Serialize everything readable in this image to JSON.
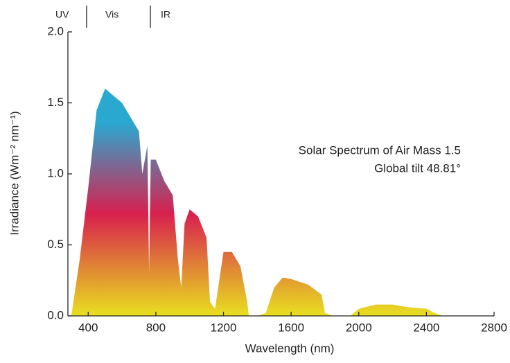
{
  "chart_data": {
    "type": "area",
    "annotations": [
      "UV",
      "Vis",
      "IR",
      "Solar Spectrum of Air Mass 1.5",
      "Global tilt  48.81°"
    ],
    "x_label": "Wavelength (nm)",
    "y_label": "Irradiance (Wm⁻² nm⁻¹)",
    "x": [
      300,
      350,
      400,
      450,
      500,
      550,
      600,
      650,
      700,
      720,
      750,
      760,
      770,
      800,
      850,
      900,
      930,
      950,
      970,
      1000,
      1050,
      1100,
      1120,
      1150,
      1200,
      1250,
      1300,
      1340,
      1350,
      1400,
      1450,
      1500,
      1550,
      1600,
      1700,
      1780,
      1800,
      1850,
      1950,
      2000,
      2100,
      2200,
      2300,
      2400,
      2450,
      2500
    ],
    "values": [
      0,
      0.4,
      0.9,
      1.45,
      1.6,
      1.55,
      1.5,
      1.4,
      1.3,
      1.0,
      1.2,
      0.3,
      1.1,
      1.1,
      0.95,
      0.85,
      0.4,
      0.2,
      0.65,
      0.75,
      0.7,
      0.55,
      0.1,
      0.05,
      0.45,
      0.45,
      0.35,
      0.1,
      0,
      0,
      0.02,
      0.2,
      0.27,
      0.26,
      0.22,
      0.15,
      0.02,
      0,
      0,
      0.05,
      0.08,
      0.08,
      0.06,
      0.05,
      0.02,
      0
    ],
    "colors": [
      "#e8e020",
      "#d8204e",
      "#2aa8d0"
    ],
    "xlim": [
      280,
      2800
    ],
    "ylim": [
      0,
      2
    ],
    "xticks": [
      400,
      800,
      1200,
      1600,
      2000,
      2400,
      2800
    ],
    "yticks": [
      {
        "value": 0,
        "label": "0.0"
      },
      {
        "value": 0.5,
        "label": "0.5"
      },
      {
        "value": 1,
        "label": "1.0"
      },
      {
        "value": 1.5,
        "label": "1.5"
      },
      {
        "value": 2,
        "label": "2.0"
      }
    ]
  }
}
